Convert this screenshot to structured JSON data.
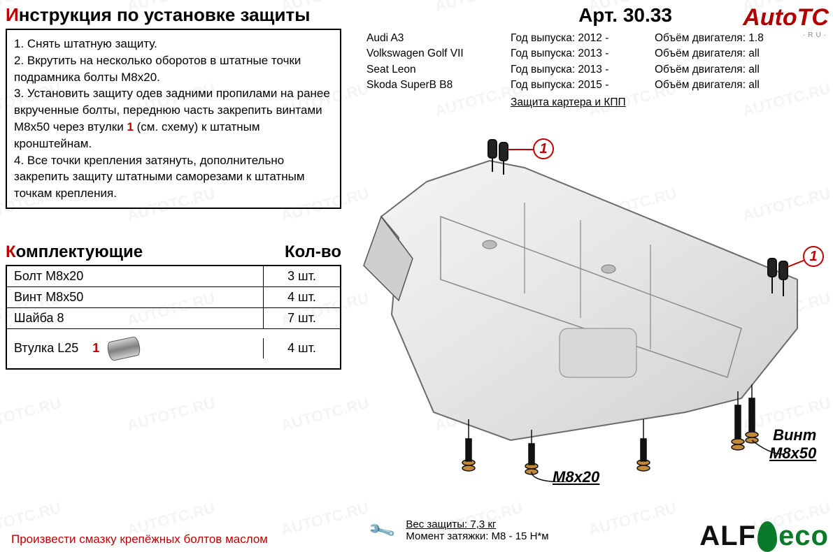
{
  "watermark_text": "AUTOTC.RU",
  "corner_logo": {
    "main": "AutoTC",
    "sub": "·RU·"
  },
  "instructions": {
    "title_first": "И",
    "title_rest": "нструкция по установке защиты",
    "items": [
      "1.   Снять штатную защиту.",
      "2.   Вкрутить на несколько оборотов в штатные точки подрамника болты М8х20.",
      "3.   Установить защиту одев задними пропилами на ранее вкрученные болты, переднюю часть закрепить винтами М8х50 через втулки ",
      "4.   Все точки крепления затянуть, дополнительно закрепить защиту штатными саморезами к штатным точкам крепления."
    ],
    "ref_marker": "1",
    "ref_tail": " (см. схему) к штатным кронштейнам."
  },
  "parts": {
    "title_first": "К",
    "title_rest": "омплектующие",
    "qty_header": "Кол-во",
    "rows": [
      {
        "name": "Болт М8х20",
        "qty": "3 шт."
      },
      {
        "name": "Винт М8х50",
        "qty": "4 шт."
      },
      {
        "name": "Шайба 8",
        "qty": "7 шт."
      },
      {
        "name": "Втулка L25",
        "marker": "1",
        "icon": "bushing",
        "qty": "4 шт."
      }
    ]
  },
  "bottom_note": "Произвести смазку крепёжных болтов маслом",
  "article": {
    "label": "Арт. 30.33",
    "vehicles": [
      {
        "model": "Audi A3",
        "year": "Год выпуска: 2012 -",
        "engine": "Объём двигателя: 1.8"
      },
      {
        "model": "Volkswagen Golf VII",
        "year": "Год выпуска: 2013 -",
        "engine": "Объём двигателя: all"
      },
      {
        "model": "Seat Leon",
        "year": "Год выпуска: 2013 -",
        "engine": "Объём двигателя: all"
      },
      {
        "model": "Skoda SuperB B8",
        "year": "Год выпуска: 2015 -",
        "engine": "Объём двигателя: all"
      }
    ],
    "protection": "Защита картера и КПП"
  },
  "diagram_labels": {
    "callout": "1",
    "bolt_label_1": "М8х20",
    "bolt_label_2_line1": "Винт",
    "bolt_label_2_line2": "М8х50"
  },
  "footer": {
    "weight": "Вес защиты: 7,3 кг",
    "torque": "Момент затяжки:    М8 - 15 Н*м"
  },
  "brand": {
    "alf": "ALF",
    "eco": "eco"
  },
  "colors": {
    "accent_red": "#c00000",
    "green": "#0a7a2a",
    "plate_fill": "#e6e6e6",
    "plate_stroke": "#6b6b6b"
  }
}
